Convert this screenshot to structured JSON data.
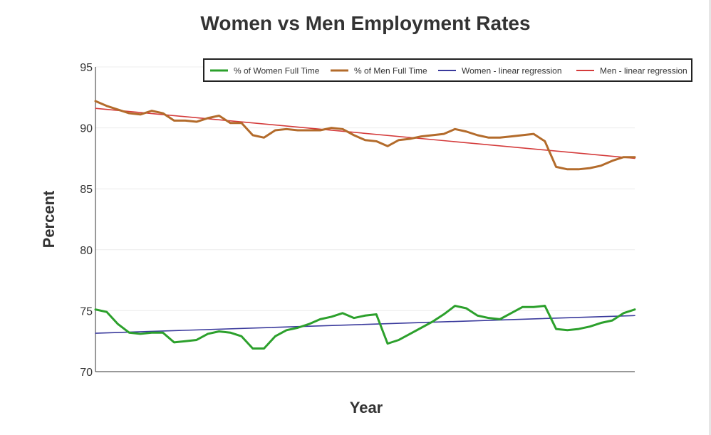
{
  "chart_data": {
    "type": "line",
    "title": "Women vs Men Employment Rates",
    "xlabel": "Year",
    "ylabel": "Percent",
    "ylim": [
      70,
      95
    ],
    "yticks": [
      70,
      75,
      80,
      85,
      90,
      95
    ],
    "grid": true,
    "x_tick_labels_shown": false,
    "legend_position": "top-right",
    "series": [
      {
        "name": "% of Women Full Time",
        "color": "#2ca02c",
        "values": [
          75.1,
          74.9,
          73.9,
          73.2,
          73.1,
          73.2,
          73.2,
          72.4,
          72.5,
          72.6,
          73.1,
          73.3,
          73.2,
          72.9,
          71.9,
          71.9,
          72.9,
          73.4,
          73.6,
          73.9,
          74.3,
          74.5,
          74.8,
          74.4,
          74.6,
          74.7,
          72.3,
          72.6,
          73.1,
          73.6,
          74.1,
          74.7,
          75.4,
          75.2,
          74.6,
          74.4,
          74.3,
          74.8,
          75.3,
          75.3,
          75.4,
          73.5,
          73.4,
          73.5,
          73.7,
          74.0,
          74.2,
          74.8,
          75.1
        ]
      },
      {
        "name": "% of Men Full Time",
        "color": "#b36b2b",
        "values": [
          92.2,
          91.8,
          91.5,
          91.2,
          91.1,
          91.4,
          91.2,
          90.6,
          90.6,
          90.5,
          90.8,
          91.0,
          90.4,
          90.4,
          89.4,
          89.2,
          89.8,
          89.9,
          89.8,
          89.8,
          89.8,
          90.0,
          89.9,
          89.4,
          89.0,
          88.9,
          88.5,
          89.0,
          89.1,
          89.3,
          89.4,
          89.5,
          89.9,
          89.7,
          89.4,
          89.2,
          89.2,
          89.3,
          89.4,
          89.5,
          88.9,
          86.8,
          86.6,
          86.6,
          86.7,
          86.9,
          87.3,
          87.6,
          87.6
        ]
      },
      {
        "name": "Women - linear regression",
        "color": "#3a3a9c",
        "values": [
          73.15,
          74.6
        ]
      },
      {
        "name": "Men - linear regression",
        "color": "#d43b3b",
        "values": [
          91.6,
          87.5
        ]
      }
    ]
  }
}
